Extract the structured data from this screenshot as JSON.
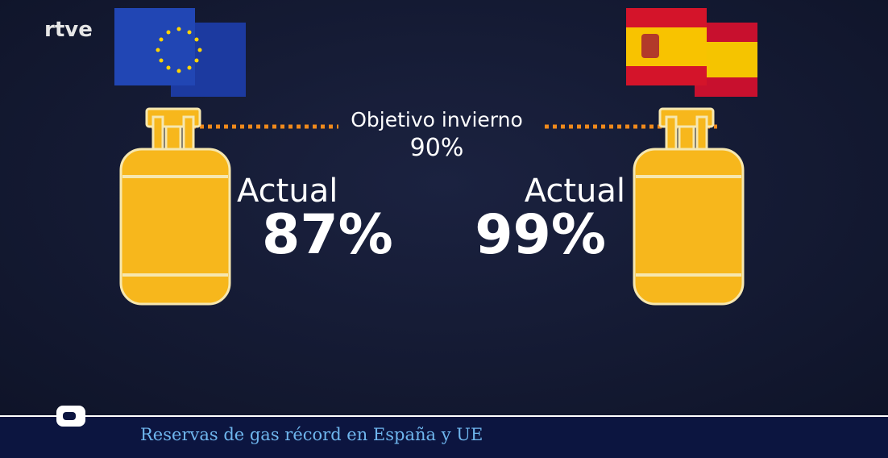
{
  "logo": "rtve",
  "target": {
    "label": "Objetivo invierno",
    "value": "90%"
  },
  "left": {
    "label": "Actual",
    "value": "87%"
  },
  "right": {
    "label": "Actual",
    "value": "99%"
  },
  "ticker": "Reservas de gas récord en España y UE"
}
